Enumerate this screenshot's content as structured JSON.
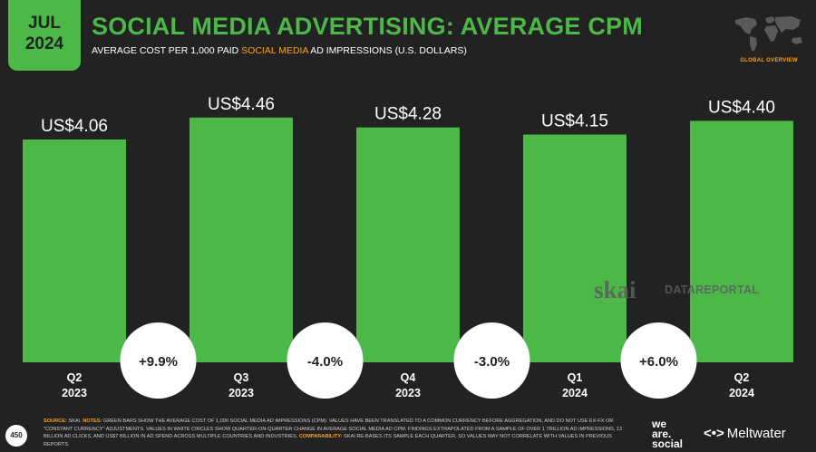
{
  "header": {
    "month": "JUL",
    "year": "2024",
    "title": "SOCIAL MEDIA ADVERTISING: AVERAGE CPM",
    "subtitle_pre": "AVERAGE COST PER 1,000 PAID ",
    "subtitle_highlight": "SOCIAL MEDIA",
    "subtitle_post": " AD IMPRESSIONS (U.S. DOLLARS)",
    "global_overview": "GLOBAL OVERVIEW"
  },
  "watermark": {
    "skai": "skai",
    "datareportal": "DATAREPORTAL"
  },
  "footer": {
    "page_number": "450",
    "source_label": "SOURCE:",
    "source_text": " SKAI. ",
    "notes_label": "NOTES:",
    "notes_text": " GREEN BARS SHOW THE AVERAGE COST OF 1,000 SOCIAL MEDIA AD IMPRESSIONS (CPM). VALUES HAVE BEEN TRANSLATED TO A COMMON CURRENCY BEFORE AGGREGATION, AND DO NOT USE EX-FX OR \"CONSTANT CURRENCY\" ADJUSTMENTS. VALUES IN WHITE CIRCLES SHOW QUARTER-ON-QUARTER CHANGE IN AVERAGE SOCIAL MEDIA AD CPM. FINDINGS EXTRAPOLATED FROM A SAMPLE OF OVER 1 TRILLION AD IMPRESSIONS, 12 BILLION AD CLICKS, AND US$7 BILLION IN AD SPEND ACROSS MULTIPLE COUNTRIES AND INDUSTRIES. ",
    "comparability_label": "COMPARABILITY:",
    "comparability_text": " SKAI RE-BASES ITS SAMPLE EACH QUARTER, SO VALUES MAY NOT CORRELATE WITH VALUES IN PREVIOUS REPORTS.",
    "brand_we": "we",
    "brand_are": "are.",
    "brand_social": "social",
    "brand_meltwater_mark": "<•>",
    "brand_meltwater": "Meltwater"
  },
  "colors": {
    "bar": "#4cb848",
    "accent": "#f7a21b",
    "background": "#222222"
  },
  "chart_data": {
    "type": "bar",
    "categories": [
      [
        "Q2",
        "2023"
      ],
      [
        "Q3",
        "2023"
      ],
      [
        "Q4",
        "2023"
      ],
      [
        "Q1",
        "2024"
      ],
      [
        "Q2",
        "2024"
      ]
    ],
    "values": [
      4.06,
      4.46,
      4.28,
      4.15,
      4.4
    ],
    "value_labels": [
      "US$4.06",
      "US$4.46",
      "US$4.28",
      "US$4.15",
      "US$4.40"
    ],
    "changes": [
      "+9.9%",
      "-4.0%",
      "-3.0%",
      "+6.0%"
    ]
  }
}
